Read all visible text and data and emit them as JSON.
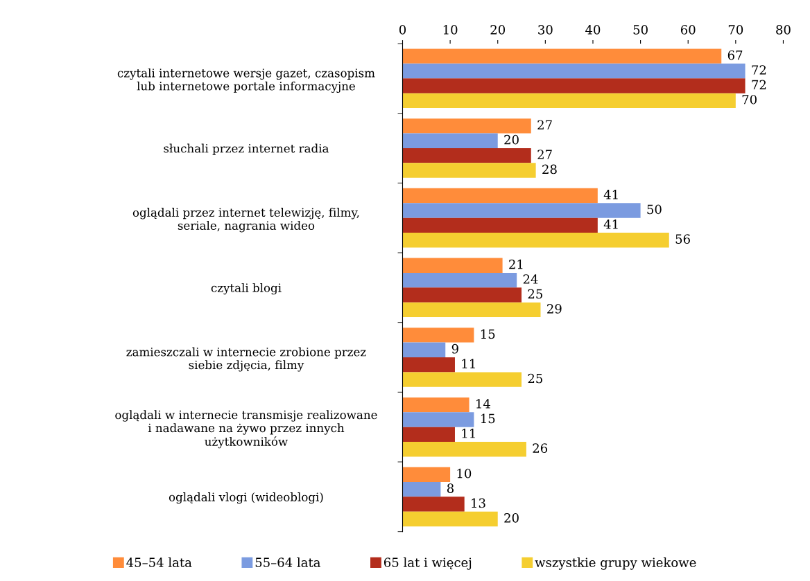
{
  "chart_data": {
    "type": "bar",
    "orientation": "horizontal",
    "categories": [
      "czytali internetowe wersje gazet, czasopism\nlub internetowe portale informacyjne",
      "słuchali przez internet radia",
      "oglądali przez internet telewizję, filmy,\nseriale, nagrania wideo",
      "czytali blogi",
      "zamieszczali w internecie zrobione przez\nsiebie zdjęcia, filmy",
      "oglądali w internecie transmisje realizowane\ni nadawane na żywo przez innych\nużytkowników",
      "oglądali vlogi (wideoblogi)"
    ],
    "series": [
      {
        "name": "45–54 lata",
        "color": "#ff8c3a",
        "values": [
          67,
          27,
          41,
          21,
          15,
          14,
          10
        ]
      },
      {
        "name": "55–64 lata",
        "color": "#7b9be0",
        "values": [
          72,
          20,
          50,
          24,
          9,
          15,
          8
        ]
      },
      {
        "name": "65 lat i więcej",
        "color": "#b32d1c",
        "values": [
          72,
          27,
          41,
          25,
          11,
          11,
          13
        ]
      },
      {
        "name": "wszystkie grupy wiekowe",
        "color": "#f5ce30",
        "values": [
          70,
          28,
          56,
          29,
          25,
          26,
          20
        ]
      }
    ],
    "xlim": [
      0,
      80
    ],
    "xticks": [
      0,
      10,
      20,
      30,
      40,
      50,
      60,
      70,
      80
    ],
    "data_labels": true,
    "grid": false,
    "legend": "bottom"
  }
}
